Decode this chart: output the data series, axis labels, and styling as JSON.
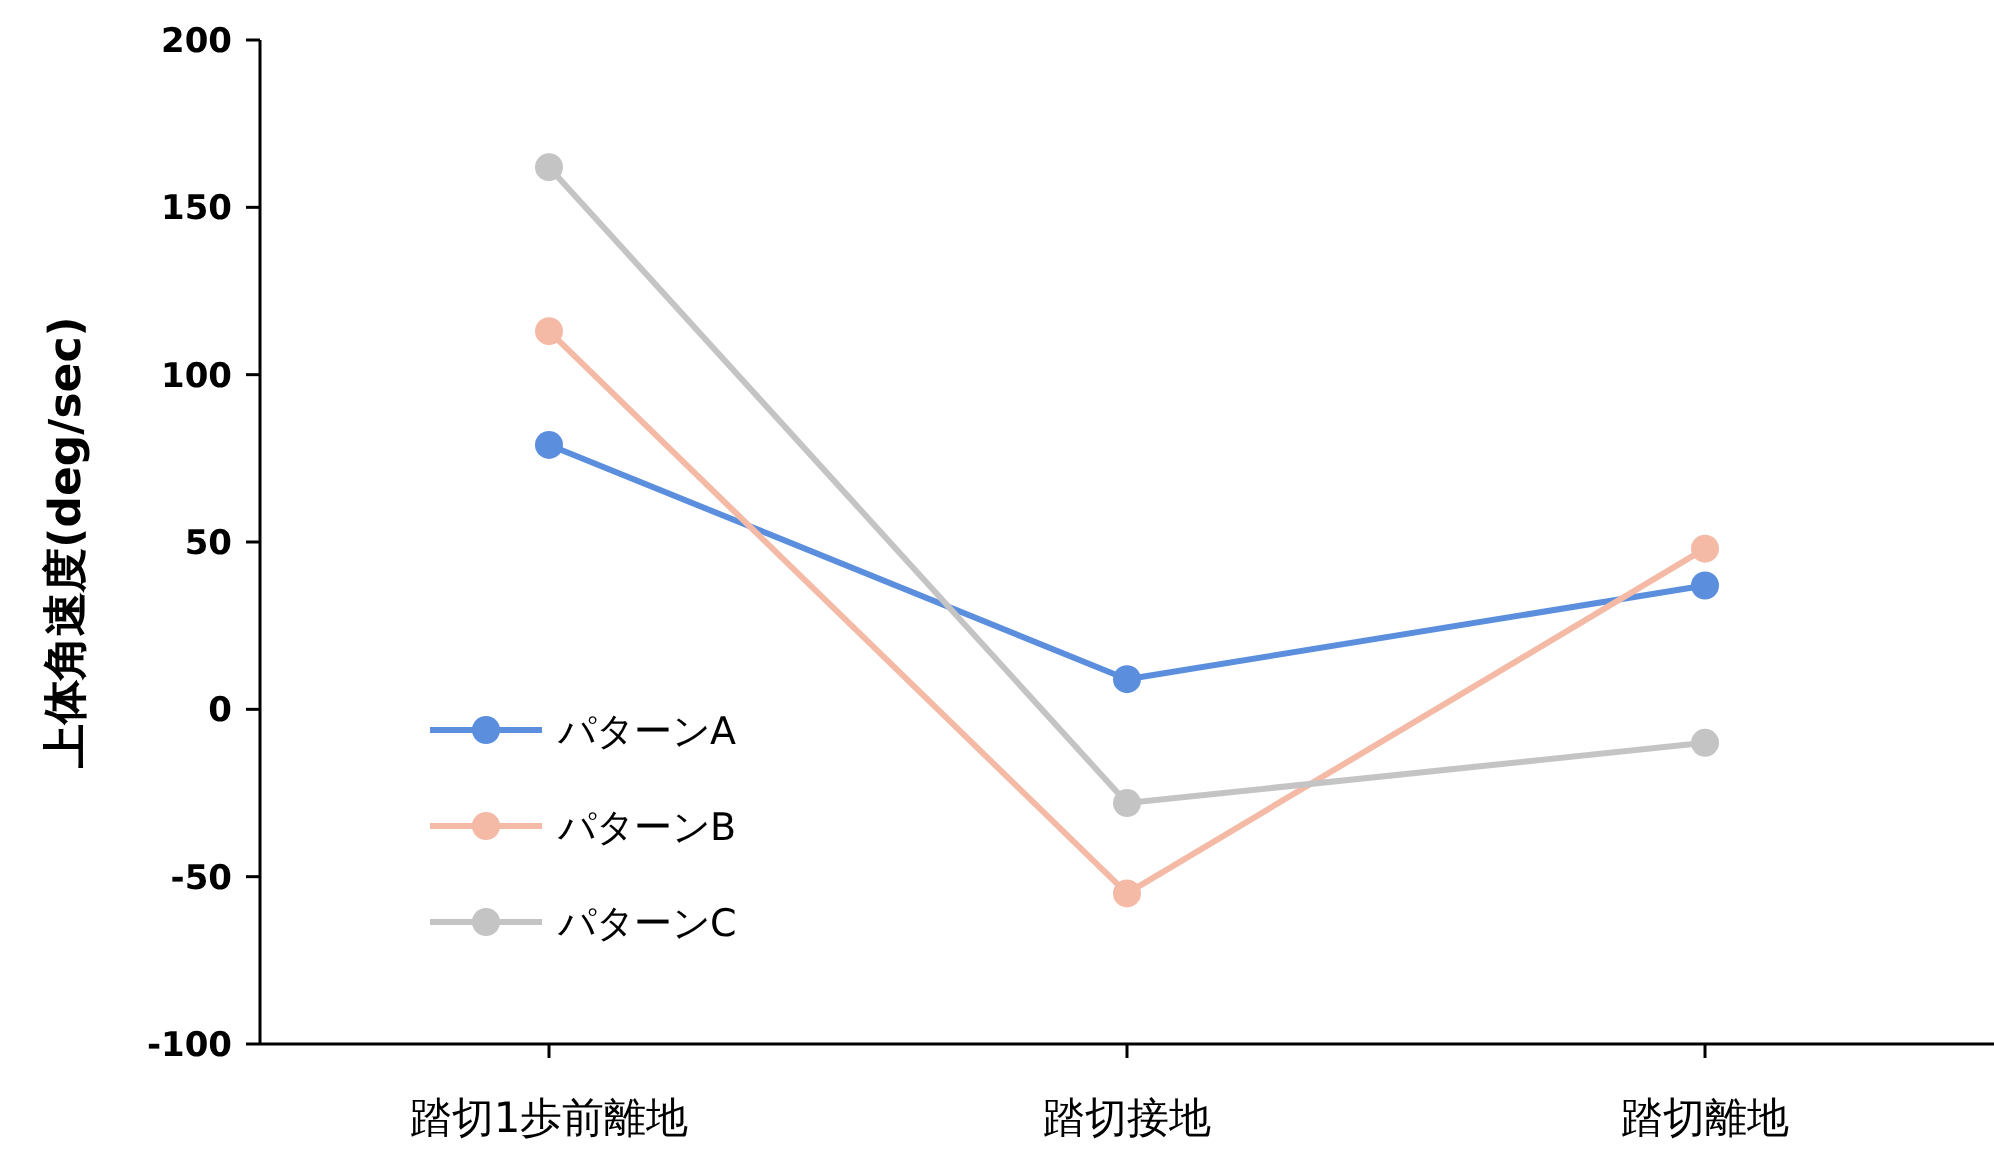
{
  "chart_data": {
    "type": "line",
    "ylabel": "上体角速度(deg/sec)",
    "categories": [
      "踏切1歩前離地",
      "踏切接地",
      "踏切離地"
    ],
    "series": [
      {
        "name": "パターンA",
        "color": "#5b8fde",
        "values": [
          79,
          9,
          37
        ]
      },
      {
        "name": "パターンB",
        "color": "#f4baa6",
        "values": [
          113,
          -55,
          48
        ]
      },
      {
        "name": "パターンC",
        "color": "#c4c4c4",
        "values": [
          162,
          -28,
          -10
        ]
      }
    ],
    "ylim": [
      -100,
      200
    ],
    "yticks": [
      -100,
      -50,
      0,
      50,
      100,
      150,
      200
    ],
    "grid": false,
    "legend": "left",
    "marker": "circle",
    "line_style": "solid"
  }
}
